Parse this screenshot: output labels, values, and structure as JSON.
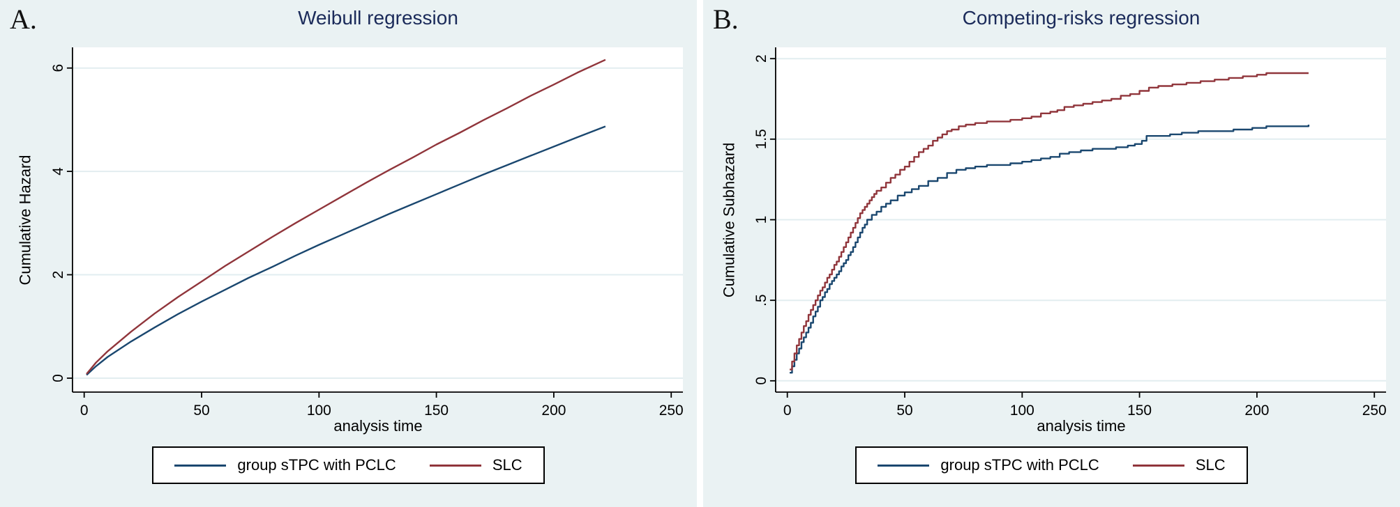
{
  "figure": {
    "background": "#ffffff",
    "panel_background": "#eaf2f3",
    "plot_background": "#ffffff",
    "grid_color": "#e2edf0",
    "axis_color": "#000000",
    "title_color": "#1b2b5a",
    "series_colors": {
      "navy": "#1a476f",
      "maroon": "#90353b"
    }
  },
  "chart_data": [
    {
      "type": "line",
      "panel_label": "A.",
      "title": "Weibull regression",
      "xlabel": "analysis time",
      "ylabel": "Cumulative Hazard",
      "xlim": [
        -5,
        255
      ],
      "ylim": [
        -0.27,
        6.4
      ],
      "xticks": [
        0,
        50,
        100,
        150,
        200,
        250
      ],
      "xtick_labels": [
        "0",
        "50",
        "100",
        "150",
        "200",
        "250"
      ],
      "yticks": [
        0,
        2,
        4,
        6
      ],
      "ytick_labels": [
        "0",
        "2",
        "4",
        "6"
      ],
      "grid": true,
      "legend_position": "bottom",
      "series": [
        {
          "name": "group sTPC with PCLC",
          "color": "#1a476f",
          "step": false,
          "points": [
            [
              1,
              0.06
            ],
            [
              5,
              0.23
            ],
            [
              10,
              0.41
            ],
            [
              20,
              0.71
            ],
            [
              30,
              0.98
            ],
            [
              40,
              1.24
            ],
            [
              50,
              1.48
            ],
            [
              60,
              1.71
            ],
            [
              70,
              1.94
            ],
            [
              80,
              2.15
            ],
            [
              90,
              2.37
            ],
            [
              100,
              2.58
            ],
            [
              110,
              2.78
            ],
            [
              120,
              2.98
            ],
            [
              130,
              3.18
            ],
            [
              140,
              3.37
            ],
            [
              150,
              3.56
            ],
            [
              160,
              3.75
            ],
            [
              170,
              3.94
            ],
            [
              180,
              4.12
            ],
            [
              190,
              4.3
            ],
            [
              200,
              4.48
            ],
            [
              210,
              4.66
            ],
            [
              222,
              4.87
            ]
          ]
        },
        {
          "name": "SLC",
          "color": "#90353b",
          "step": false,
          "points": [
            [
              1,
              0.08
            ],
            [
              5,
              0.3
            ],
            [
              10,
              0.52
            ],
            [
              20,
              0.9
            ],
            [
              30,
              1.25
            ],
            [
              40,
              1.57
            ],
            [
              50,
              1.87
            ],
            [
              60,
              2.17
            ],
            [
              70,
              2.45
            ],
            [
              80,
              2.73
            ],
            [
              90,
              3.0
            ],
            [
              100,
              3.26
            ],
            [
              110,
              3.52
            ],
            [
              120,
              3.78
            ],
            [
              130,
              4.03
            ],
            [
              140,
              4.27
            ],
            [
              150,
              4.52
            ],
            [
              160,
              4.75
            ],
            [
              170,
              4.99
            ],
            [
              180,
              5.22
            ],
            [
              190,
              5.46
            ],
            [
              200,
              5.68
            ],
            [
              210,
              5.91
            ],
            [
              222,
              6.16
            ]
          ]
        }
      ]
    },
    {
      "type": "line",
      "panel_label": "B.",
      "title": "Competing-risks regression",
      "xlabel": "analysis time",
      "ylabel": "Cumulative Subhazard",
      "xlim": [
        -5,
        255
      ],
      "ylim": [
        -0.07,
        2.07
      ],
      "xticks": [
        0,
        50,
        100,
        150,
        200,
        250
      ],
      "xtick_labels": [
        "0",
        "50",
        "100",
        "150",
        "200",
        "250"
      ],
      "yticks": [
        0,
        0.5,
        1,
        1.5,
        2
      ],
      "ytick_labels": [
        "0",
        ".5",
        "1",
        "1.5",
        "2"
      ],
      "grid": true,
      "legend_position": "bottom",
      "series": [
        {
          "name": "group sTPC with PCLC",
          "color": "#1a476f",
          "step": true,
          "points": [
            [
              1,
              0.05
            ],
            [
              2,
              0.09
            ],
            [
              3,
              0.13
            ],
            [
              4,
              0.17
            ],
            [
              5,
              0.2
            ],
            [
              6,
              0.24
            ],
            [
              7,
              0.27
            ],
            [
              8,
              0.3
            ],
            [
              9,
              0.33
            ],
            [
              10,
              0.36
            ],
            [
              11,
              0.4
            ],
            [
              12,
              0.43
            ],
            [
              13,
              0.46
            ],
            [
              14,
              0.5
            ],
            [
              15,
              0.52
            ],
            [
              16,
              0.55
            ],
            [
              17,
              0.57
            ],
            [
              18,
              0.6
            ],
            [
              19,
              0.62
            ],
            [
              20,
              0.64
            ],
            [
              21,
              0.66
            ],
            [
              22,
              0.68
            ],
            [
              23,
              0.71
            ],
            [
              24,
              0.73
            ],
            [
              25,
              0.75
            ],
            [
              26,
              0.78
            ],
            [
              27,
              0.8
            ],
            [
              28,
              0.83
            ],
            [
              29,
              0.86
            ],
            [
              30,
              0.89
            ],
            [
              31,
              0.92
            ],
            [
              32,
              0.95
            ],
            [
              33,
              0.97
            ],
            [
              34,
              1.0
            ],
            [
              36,
              1.03
            ],
            [
              38,
              1.05
            ],
            [
              40,
              1.08
            ],
            [
              42,
              1.1
            ],
            [
              44,
              1.12
            ],
            [
              47,
              1.15
            ],
            [
              50,
              1.17
            ],
            [
              53,
              1.19
            ],
            [
              56,
              1.21
            ],
            [
              60,
              1.24
            ],
            [
              64,
              1.26
            ],
            [
              68,
              1.29
            ],
            [
              72,
              1.31
            ],
            [
              76,
              1.32
            ],
            [
              80,
              1.33
            ],
            [
              85,
              1.34
            ],
            [
              95,
              1.35
            ],
            [
              100,
              1.36
            ],
            [
              104,
              1.37
            ],
            [
              108,
              1.38
            ],
            [
              112,
              1.39
            ],
            [
              116,
              1.41
            ],
            [
              120,
              1.42
            ],
            [
              125,
              1.43
            ],
            [
              130,
              1.44
            ],
            [
              140,
              1.45
            ],
            [
              145,
              1.46
            ],
            [
              148,
              1.47
            ],
            [
              151,
              1.49
            ],
            [
              153,
              1.52
            ],
            [
              163,
              1.53
            ],
            [
              168,
              1.54
            ],
            [
              175,
              1.55
            ],
            [
              190,
              1.56
            ],
            [
              198,
              1.57
            ],
            [
              204,
              1.58
            ],
            [
              222,
              1.59
            ]
          ]
        },
        {
          "name": "SLC",
          "color": "#90353b",
          "step": true,
          "points": [
            [
              1,
              0.07
            ],
            [
              2,
              0.12
            ],
            [
              3,
              0.17
            ],
            [
              4,
              0.22
            ],
            [
              5,
              0.26
            ],
            [
              6,
              0.3
            ],
            [
              7,
              0.34
            ],
            [
              8,
              0.37
            ],
            [
              9,
              0.41
            ],
            [
              10,
              0.44
            ],
            [
              11,
              0.47
            ],
            [
              12,
              0.5
            ],
            [
              13,
              0.53
            ],
            [
              14,
              0.56
            ],
            [
              15,
              0.58
            ],
            [
              16,
              0.61
            ],
            [
              17,
              0.64
            ],
            [
              18,
              0.66
            ],
            [
              19,
              0.69
            ],
            [
              20,
              0.72
            ],
            [
              21,
              0.74
            ],
            [
              22,
              0.77
            ],
            [
              23,
              0.8
            ],
            [
              24,
              0.83
            ],
            [
              25,
              0.86
            ],
            [
              26,
              0.89
            ],
            [
              27,
              0.92
            ],
            [
              28,
              0.95
            ],
            [
              29,
              0.98
            ],
            [
              30,
              1.01
            ],
            [
              31,
              1.04
            ],
            [
              32,
              1.06
            ],
            [
              33,
              1.08
            ],
            [
              34,
              1.1
            ],
            [
              35,
              1.12
            ],
            [
              36,
              1.14
            ],
            [
              37,
              1.16
            ],
            [
              38,
              1.18
            ],
            [
              40,
              1.2
            ],
            [
              42,
              1.23
            ],
            [
              44,
              1.26
            ],
            [
              46,
              1.28
            ],
            [
              48,
              1.31
            ],
            [
              50,
              1.33
            ],
            [
              52,
              1.36
            ],
            [
              54,
              1.39
            ],
            [
              56,
              1.42
            ],
            [
              58,
              1.44
            ],
            [
              60,
              1.46
            ],
            [
              62,
              1.49
            ],
            [
              64,
              1.51
            ],
            [
              66,
              1.53
            ],
            [
              68,
              1.55
            ],
            [
              70,
              1.56
            ],
            [
              73,
              1.58
            ],
            [
              76,
              1.59
            ],
            [
              80,
              1.6
            ],
            [
              85,
              1.61
            ],
            [
              95,
              1.62
            ],
            [
              100,
              1.63
            ],
            [
              104,
              1.64
            ],
            [
              108,
              1.66
            ],
            [
              112,
              1.67
            ],
            [
              115,
              1.68
            ],
            [
              118,
              1.7
            ],
            [
              122,
              1.71
            ],
            [
              126,
              1.72
            ],
            [
              130,
              1.73
            ],
            [
              134,
              1.74
            ],
            [
              138,
              1.75
            ],
            [
              142,
              1.77
            ],
            [
              146,
              1.78
            ],
            [
              150,
              1.8
            ],
            [
              154,
              1.82
            ],
            [
              158,
              1.83
            ],
            [
              164,
              1.84
            ],
            [
              170,
              1.85
            ],
            [
              176,
              1.86
            ],
            [
              182,
              1.87
            ],
            [
              188,
              1.88
            ],
            [
              194,
              1.89
            ],
            [
              200,
              1.9
            ],
            [
              204,
              1.91
            ],
            [
              222,
              1.91
            ]
          ]
        }
      ]
    }
  ]
}
